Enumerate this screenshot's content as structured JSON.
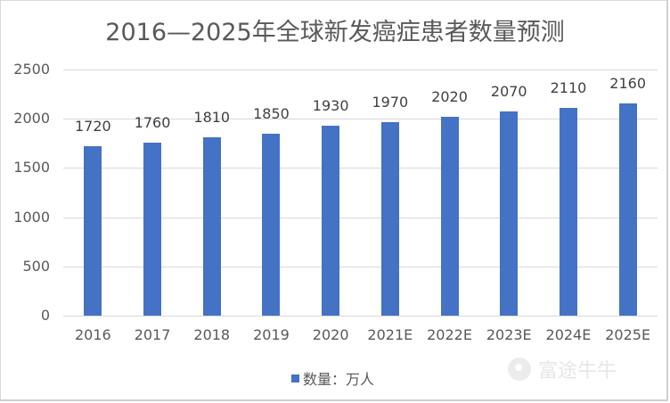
{
  "chart_data": {
    "type": "bar",
    "title": "2016—2025年全球新发癌症患者数量预测",
    "categories": [
      "2016",
      "2017",
      "2018",
      "2019",
      "2020",
      "2021E",
      "2022E",
      "2023E",
      "2024E",
      "2025E"
    ],
    "series": [
      {
        "name": "数量：万人",
        "values": [
          1720,
          1760,
          1810,
          1850,
          1930,
          1970,
          2020,
          2070,
          2110,
          2160
        ],
        "color": "#4472c4"
      }
    ],
    "xlabel": "",
    "ylabel": "",
    "ylim": [
      0,
      2500
    ],
    "yticks": [
      0,
      500,
      1000,
      1500,
      2000,
      2500
    ],
    "grid": true,
    "data_labels": true,
    "legend_position": "bottom"
  },
  "legend": {
    "label": "数量：万人"
  },
  "watermark": {
    "text": "富途牛牛"
  }
}
